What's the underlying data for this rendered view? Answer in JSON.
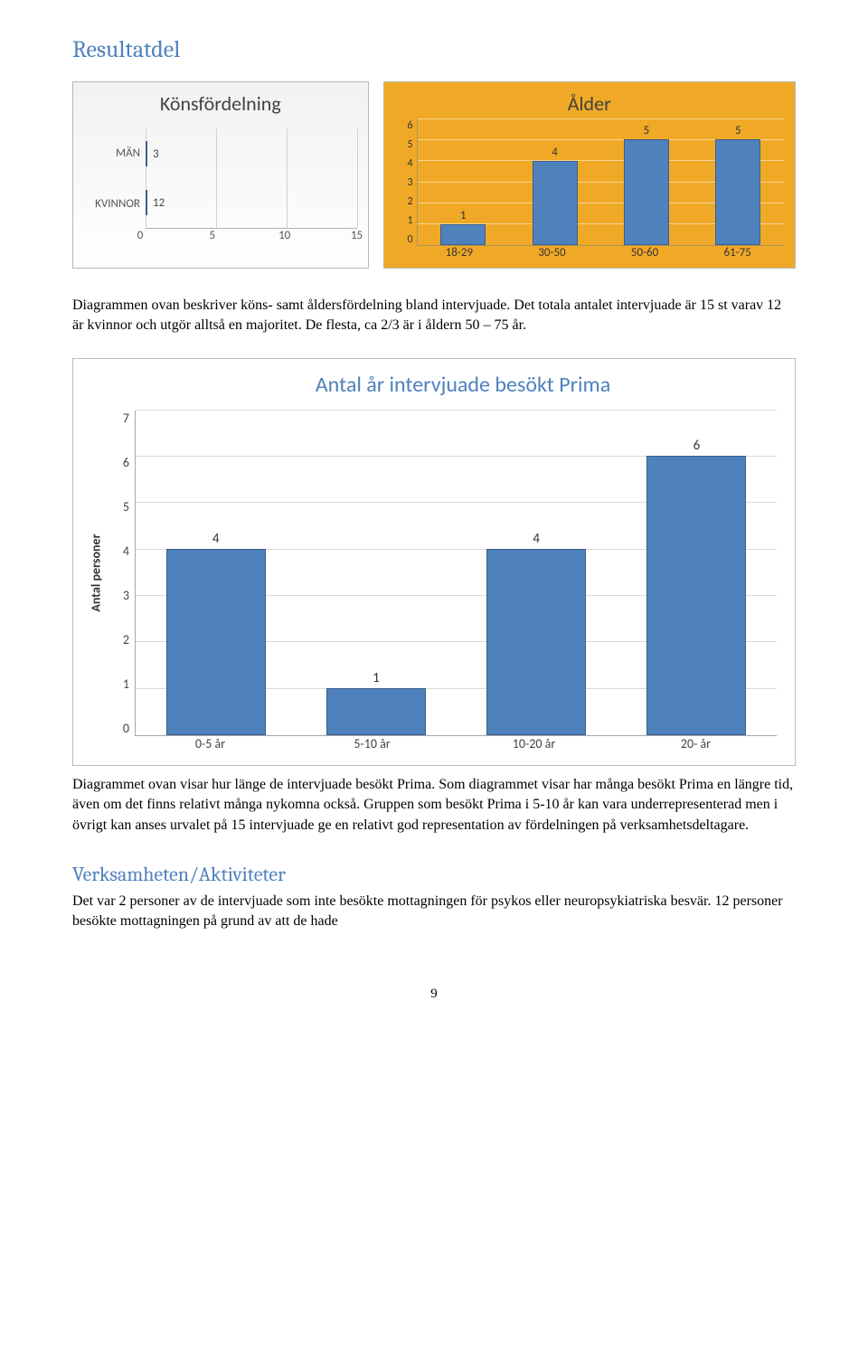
{
  "headings": {
    "main": "Resultatdel",
    "sub": "Verksamheten/Aktiviteter"
  },
  "paragraphs": {
    "p1": "Diagrammen ovan beskriver köns- samt åldersfördelning bland intervjuade. Det totala antalet intervjuade är 15 st varav 12 är kvinnor och utgör alltså en majoritet. De flesta, ca 2/3 är i åldern 50 – 75 år.",
    "p2": "Diagrammet ovan visar hur länge de intervjuade besökt Prima. Som diagrammet visar har många besökt Prima en längre tid, även om det finns relativt många nykomna också. Gruppen som besökt Prima i 5-10 år kan vara underrepresenterad men i övrigt kan anses urvalet på 15 intervjuade ge en relativt god representation av fördelningen på verksamhetsdeltagare.",
    "p3": "Det var 2 personer av de intervjuade som inte besökte mottagningen för psykos eller neuropsykiatriska besvär. 12 personer besökte mottagningen på grund av att de hade"
  },
  "page_number": "9",
  "gender_chart": {
    "title": "Könsfördelning",
    "type": "bar_horizontal",
    "categories": [
      "MÄN",
      "KVINNOR"
    ],
    "values": [
      3,
      12
    ],
    "xmax": 15,
    "xtick_step": 5,
    "xticks": [
      "0",
      "5",
      "10",
      "15"
    ],
    "bar_color": "#4f81bd",
    "bar_border_color": "#3a5e8a",
    "grid_color": "#d0d0d0",
    "background_gradient_top": "#f2f2f2",
    "background_gradient_bottom": "#ffffff",
    "title_fontsize": 22
  },
  "age_chart": {
    "title": "Ålder",
    "type": "bar",
    "categories": [
      "18-29",
      "30-50",
      "50-60",
      "61-75"
    ],
    "values": [
      1,
      4,
      5,
      5
    ],
    "ymax": 6,
    "ytick_step": 1,
    "yticks": [
      "6",
      "5",
      "4",
      "3",
      "2",
      "1",
      "0"
    ],
    "bar_color": "#4f81bd",
    "bar_border_color": "#3a5e8a",
    "background_color": "#f0a926",
    "grid_color": "rgba(255,255,255,0.5)",
    "title_fontsize": 22
  },
  "years_chart": {
    "title": "Antal år intervjuade besökt Prima",
    "type": "bar",
    "ylabel": "Antal personer",
    "categories": [
      "0-5 år",
      "5-10 år",
      "10-20 år",
      "20- år"
    ],
    "values": [
      4,
      1,
      4,
      6
    ],
    "ymax": 7,
    "ytick_step": 1,
    "yticks": [
      "7",
      "6",
      "5",
      "4",
      "3",
      "2",
      "1",
      "0"
    ],
    "bar_color": "#4f81bd",
    "bar_border_color": "#3a5e8a",
    "grid_color": "#d9d9d9",
    "background_color": "#ffffff",
    "title_color": "#4f81bd",
    "title_fontsize": 24
  }
}
